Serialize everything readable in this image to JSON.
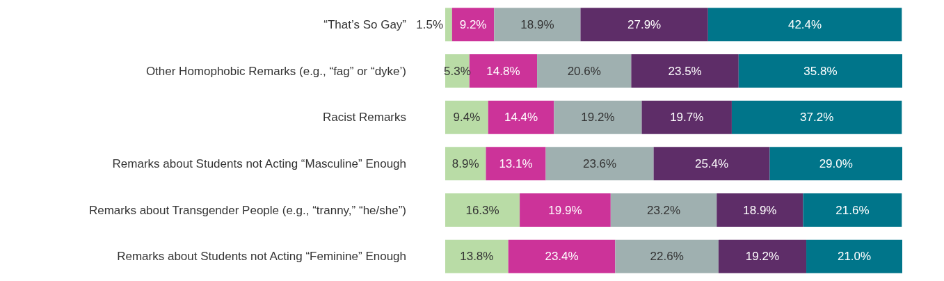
{
  "chart_data": {
    "type": "bar",
    "orientation": "horizontal",
    "stacked": true,
    "categories": [
      "“That’s So Gay”",
      "Other Homophobic Remarks (e.g., “fag” or “dyke’)",
      "Racist Remarks",
      "Remarks about Students not Acting “Masculine” Enough",
      "Remarks about Transgender People (e.g., “tranny,” “he/she”)",
      "Remarks about Students not Acting “Feminine” Enough"
    ],
    "series": [
      {
        "color": "#b9dca6",
        "values": [
          1.5,
          5.3,
          9.4,
          8.9,
          16.3,
          13.8
        ],
        "value_labels": [
          "1.5%",
          "5.3%",
          "9.4%",
          "8.9%",
          "16.3%",
          "13.8%"
        ]
      },
      {
        "color": "#cc3399",
        "values": [
          9.2,
          14.8,
          14.4,
          13.1,
          19.9,
          23.4
        ],
        "value_labels": [
          "9.2%",
          "14.8%",
          "14.4%",
          "13.1%",
          "19.9%",
          "23.4%"
        ]
      },
      {
        "color": "#9fb0b0",
        "values": [
          18.9,
          20.6,
          19.2,
          23.6,
          23.2,
          22.6
        ],
        "value_labels": [
          "18.9%",
          "20.6%",
          "19.2%",
          "23.6%",
          "23.2%",
          "22.6%"
        ]
      },
      {
        "color": "#5e2d68",
        "values": [
          27.9,
          23.5,
          19.7,
          25.4,
          18.9,
          19.2
        ],
        "value_labels": [
          "27.9%",
          "23.5%",
          "19.7%",
          "25.4%",
          "18.9%",
          "19.2%"
        ]
      },
      {
        "color": "#00758a",
        "values": [
          42.4,
          35.8,
          37.2,
          29.0,
          21.6,
          21.0
        ],
        "value_labels": [
          "42.4%",
          "35.8%",
          "37.2%",
          "29.0%",
          "21.6%",
          "21.0%"
        ]
      }
    ]
  }
}
